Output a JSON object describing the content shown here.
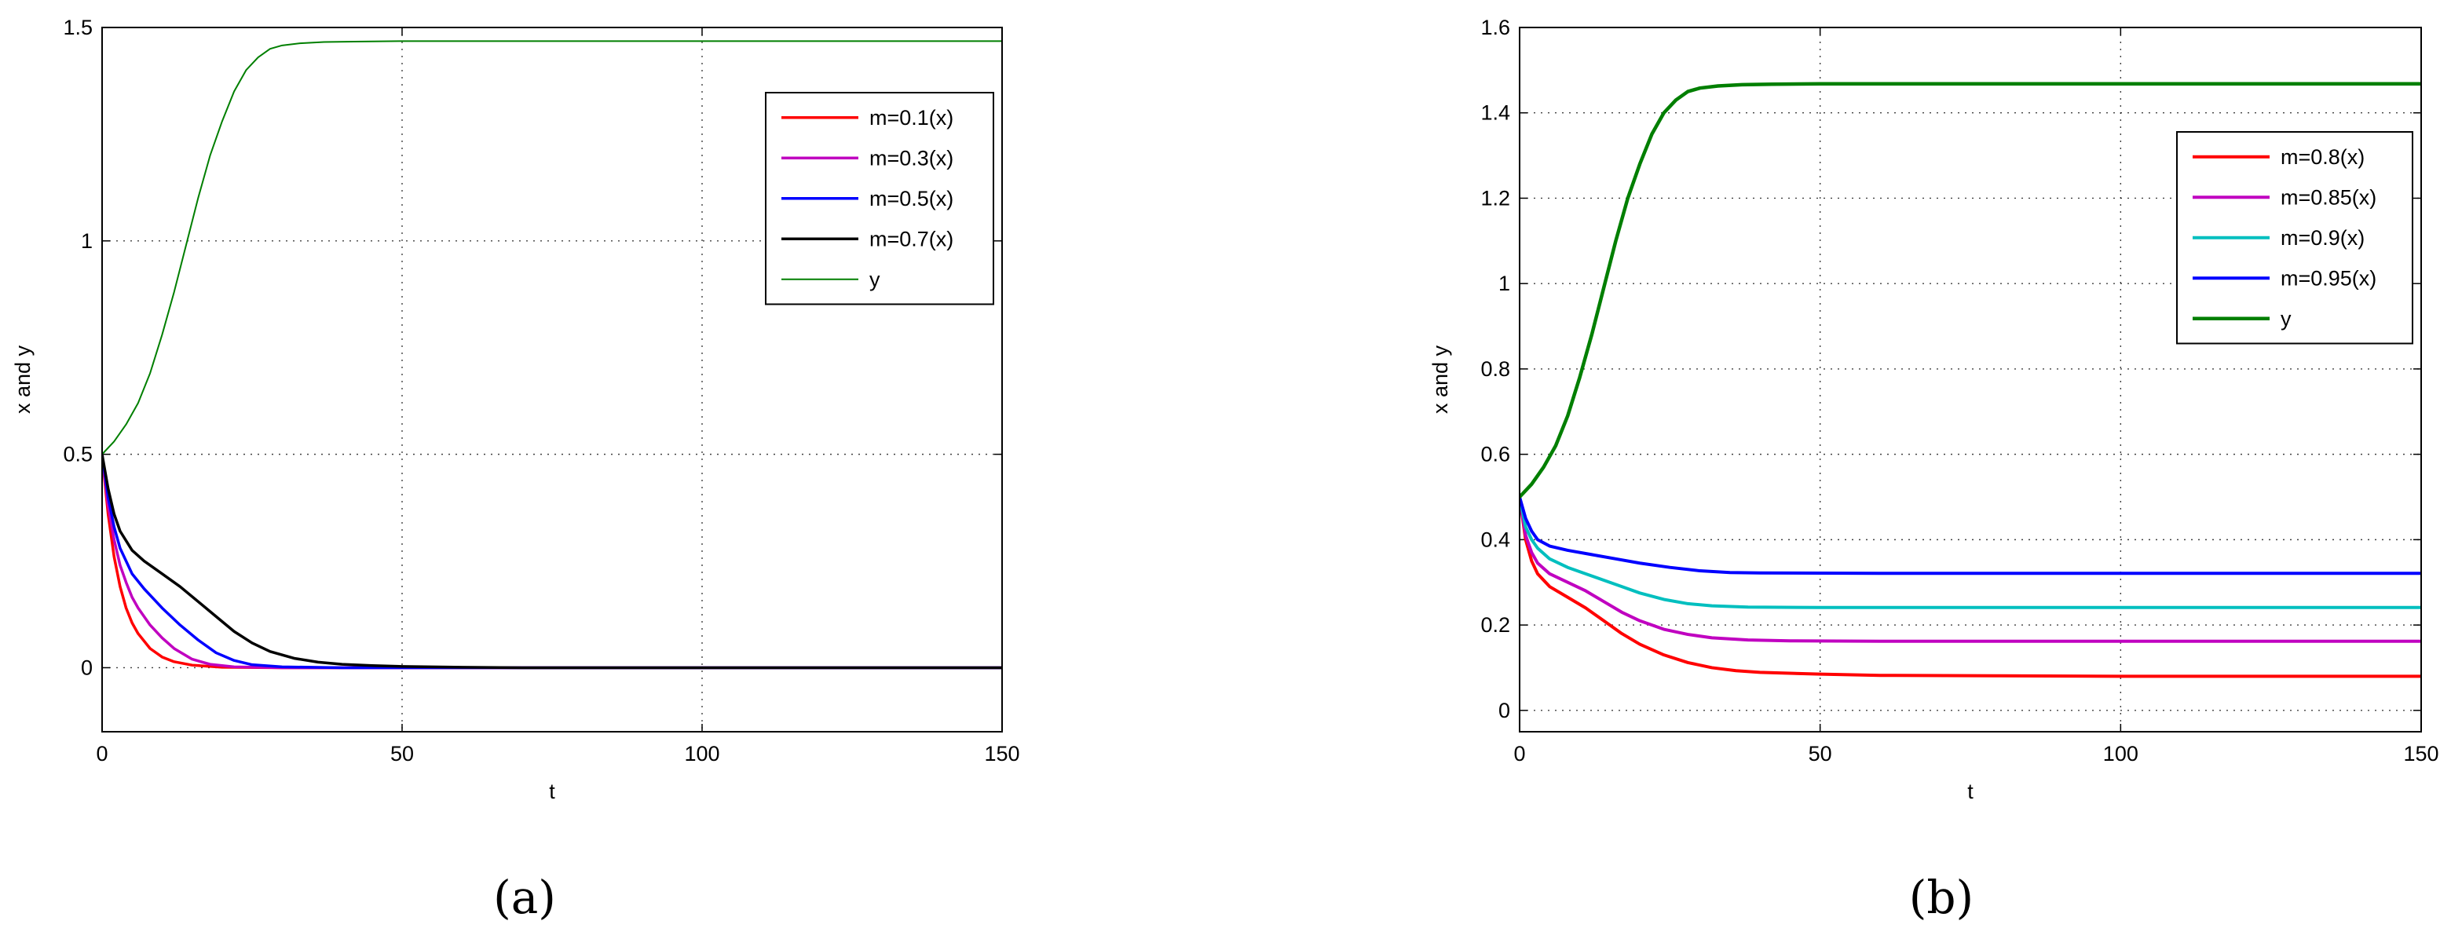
{
  "chart_data": [
    {
      "type": "line",
      "caption": "(a)",
      "xlabel": "t",
      "ylabel": "x and y",
      "xlim": [
        0,
        150
      ],
      "ylim": [
        -0.15,
        1.5
      ],
      "xticks": [
        0,
        50,
        100,
        150
      ],
      "yticks": [
        0,
        0.5,
        1,
        1.5
      ],
      "xtick_labels": [
        "0",
        "50",
        "100",
        "150"
      ],
      "ytick_labels": [
        "0",
        "0.5",
        "1",
        "1.5"
      ],
      "grid": true,
      "legend_position": "top-right",
      "series": [
        {
          "name": "m=0.1(x)",
          "color": "#ff0000",
          "width": 3.5,
          "points": [
            [
              0,
              0.5
            ],
            [
              1,
              0.36
            ],
            [
              2,
              0.26
            ],
            [
              3,
              0.19
            ],
            [
              4,
              0.14
            ],
            [
              5,
              0.105
            ],
            [
              6,
              0.08
            ],
            [
              8,
              0.045
            ],
            [
              10,
              0.025
            ],
            [
              12,
              0.014
            ],
            [
              15,
              0.006
            ],
            [
              20,
              0.001
            ],
            [
              30,
              0
            ],
            [
              150,
              0
            ]
          ]
        },
        {
          "name": "m=0.3(x)",
          "color": "#c000c0",
          "width": 3.5,
          "points": [
            [
              0,
              0.5
            ],
            [
              1,
              0.38
            ],
            [
              2,
              0.3
            ],
            [
              3,
              0.24
            ],
            [
              4,
              0.2
            ],
            [
              5,
              0.165
            ],
            [
              6,
              0.14
            ],
            [
              8,
              0.1
            ],
            [
              10,
              0.07
            ],
            [
              12,
              0.045
            ],
            [
              15,
              0.02
            ],
            [
              18,
              0.008
            ],
            [
              22,
              0.002
            ],
            [
              30,
              0
            ],
            [
              150,
              0
            ]
          ]
        },
        {
          "name": "m=0.5(x)",
          "color": "#0000ff",
          "width": 3.5,
          "points": [
            [
              0,
              0.5
            ],
            [
              1,
              0.4
            ],
            [
              2,
              0.33
            ],
            [
              3,
              0.28
            ],
            [
              5,
              0.22
            ],
            [
              7,
              0.185
            ],
            [
              10,
              0.14
            ],
            [
              13,
              0.1
            ],
            [
              16,
              0.065
            ],
            [
              19,
              0.035
            ],
            [
              22,
              0.017
            ],
            [
              25,
              0.007
            ],
            [
              30,
              0.002
            ],
            [
              40,
              0
            ],
            [
              150,
              0
            ]
          ]
        },
        {
          "name": "m=0.7(x)",
          "color": "#000000",
          "width": 3.5,
          "points": [
            [
              0,
              0.5
            ],
            [
              1,
              0.42
            ],
            [
              2,
              0.36
            ],
            [
              3,
              0.32
            ],
            [
              5,
              0.275
            ],
            [
              7,
              0.25
            ],
            [
              10,
              0.22
            ],
            [
              13,
              0.19
            ],
            [
              16,
              0.155
            ],
            [
              19,
              0.12
            ],
            [
              22,
              0.085
            ],
            [
              25,
              0.058
            ],
            [
              28,
              0.038
            ],
            [
              32,
              0.022
            ],
            [
              36,
              0.013
            ],
            [
              40,
              0.008
            ],
            [
              45,
              0.005
            ],
            [
              50,
              0.003
            ],
            [
              60,
              0.001
            ],
            [
              70,
              0
            ],
            [
              150,
              0
            ]
          ]
        },
        {
          "name": "y",
          "color": "#007f00",
          "width": 2,
          "points": [
            [
              0,
              0.5
            ],
            [
              2,
              0.53
            ],
            [
              4,
              0.57
            ],
            [
              6,
              0.62
            ],
            [
              8,
              0.69
            ],
            [
              10,
              0.78
            ],
            [
              12,
              0.88
            ],
            [
              14,
              0.99
            ],
            [
              16,
              1.1
            ],
            [
              18,
              1.2
            ],
            [
              20,
              1.28
            ],
            [
              22,
              1.35
            ],
            [
              24,
              1.4
            ],
            [
              26,
              1.43
            ],
            [
              28,
              1.45
            ],
            [
              30,
              1.458
            ],
            [
              33,
              1.463
            ],
            [
              37,
              1.466
            ],
            [
              42,
              1.467
            ],
            [
              50,
              1.468
            ],
            [
              150,
              1.468
            ]
          ]
        }
      ]
    },
    {
      "type": "line",
      "caption": "(b)",
      "xlabel": "t",
      "ylabel": "x and y",
      "xlim": [
        0,
        150
      ],
      "ylim": [
        -0.05,
        1.6
      ],
      "xticks": [
        0,
        50,
        100,
        150
      ],
      "yticks": [
        0,
        0.2,
        0.4,
        0.6,
        0.8,
        1,
        1.2,
        1.4,
        1.6
      ],
      "xtick_labels": [
        "0",
        "50",
        "100",
        "150"
      ],
      "ytick_labels": [
        "0",
        "0.2",
        "0.4",
        "0.6",
        "0.8",
        "1",
        "1.2",
        "1.4",
        "1.6"
      ],
      "grid": true,
      "legend_position": "top-right",
      "series": [
        {
          "name": "m=0.8(x)",
          "color": "#ff0000",
          "width": 4,
          "points": [
            [
              0,
              0.5
            ],
            [
              1,
              0.4
            ],
            [
              2,
              0.35
            ],
            [
              3,
              0.32
            ],
            [
              5,
              0.29
            ],
            [
              8,
              0.265
            ],
            [
              11,
              0.24
            ],
            [
              14,
              0.21
            ],
            [
              17,
              0.18
            ],
            [
              20,
              0.155
            ],
            [
              24,
              0.13
            ],
            [
              28,
              0.112
            ],
            [
              32,
              0.1
            ],
            [
              36,
              0.093
            ],
            [
              40,
              0.089
            ],
            [
              50,
              0.085
            ],
            [
              60,
              0.082
            ],
            [
              80,
              0.081
            ],
            [
              100,
              0.08
            ],
            [
              150,
              0.08
            ]
          ]
        },
        {
          "name": "m=0.85(x)",
          "color": "#c000c0",
          "width": 4,
          "points": [
            [
              0,
              0.5
            ],
            [
              1,
              0.41
            ],
            [
              2,
              0.37
            ],
            [
              3,
              0.345
            ],
            [
              5,
              0.32
            ],
            [
              8,
              0.3
            ],
            [
              11,
              0.28
            ],
            [
              14,
              0.255
            ],
            [
              17,
              0.23
            ],
            [
              20,
              0.21
            ],
            [
              24,
              0.19
            ],
            [
              28,
              0.178
            ],
            [
              32,
              0.17
            ],
            [
              38,
              0.165
            ],
            [
              45,
              0.163
            ],
            [
              60,
              0.162
            ],
            [
              150,
              0.162
            ]
          ]
        },
        {
          "name": "m=0.9(x)",
          "color": "#00bfbf",
          "width": 4,
          "points": [
            [
              0,
              0.5
            ],
            [
              1,
              0.43
            ],
            [
              2,
              0.4
            ],
            [
              3,
              0.38
            ],
            [
              5,
              0.355
            ],
            [
              8,
              0.335
            ],
            [
              11,
              0.32
            ],
            [
              14,
              0.305
            ],
            [
              17,
              0.29
            ],
            [
              20,
              0.275
            ],
            [
              24,
              0.26
            ],
            [
              28,
              0.25
            ],
            [
              32,
              0.245
            ],
            [
              38,
              0.242
            ],
            [
              50,
              0.241
            ],
            [
              150,
              0.241
            ]
          ]
        },
        {
          "name": "m=0.95(x)",
          "color": "#0000ff",
          "width": 4,
          "points": [
            [
              0,
              0.5
            ],
            [
              1,
              0.45
            ],
            [
              2,
              0.42
            ],
            [
              3,
              0.4
            ],
            [
              5,
              0.385
            ],
            [
              8,
              0.375
            ],
            [
              12,
              0.365
            ],
            [
              16,
              0.355
            ],
            [
              20,
              0.345
            ],
            [
              25,
              0.335
            ],
            [
              30,
              0.327
            ],
            [
              35,
              0.323
            ],
            [
              40,
              0.322
            ],
            [
              60,
              0.321
            ],
            [
              150,
              0.321
            ]
          ]
        },
        {
          "name": "y",
          "color": "#007f00",
          "width": 4.5,
          "points": [
            [
              0,
              0.5
            ],
            [
              2,
              0.53
            ],
            [
              4,
              0.57
            ],
            [
              6,
              0.62
            ],
            [
              8,
              0.69
            ],
            [
              10,
              0.78
            ],
            [
              12,
              0.88
            ],
            [
              14,
              0.99
            ],
            [
              16,
              1.1
            ],
            [
              18,
              1.2
            ],
            [
              20,
              1.28
            ],
            [
              22,
              1.35
            ],
            [
              24,
              1.4
            ],
            [
              26,
              1.43
            ],
            [
              28,
              1.45
            ],
            [
              30,
              1.458
            ],
            [
              33,
              1.463
            ],
            [
              37,
              1.466
            ],
            [
              42,
              1.467
            ],
            [
              50,
              1.468
            ],
            [
              150,
              1.468
            ]
          ]
        }
      ]
    }
  ]
}
